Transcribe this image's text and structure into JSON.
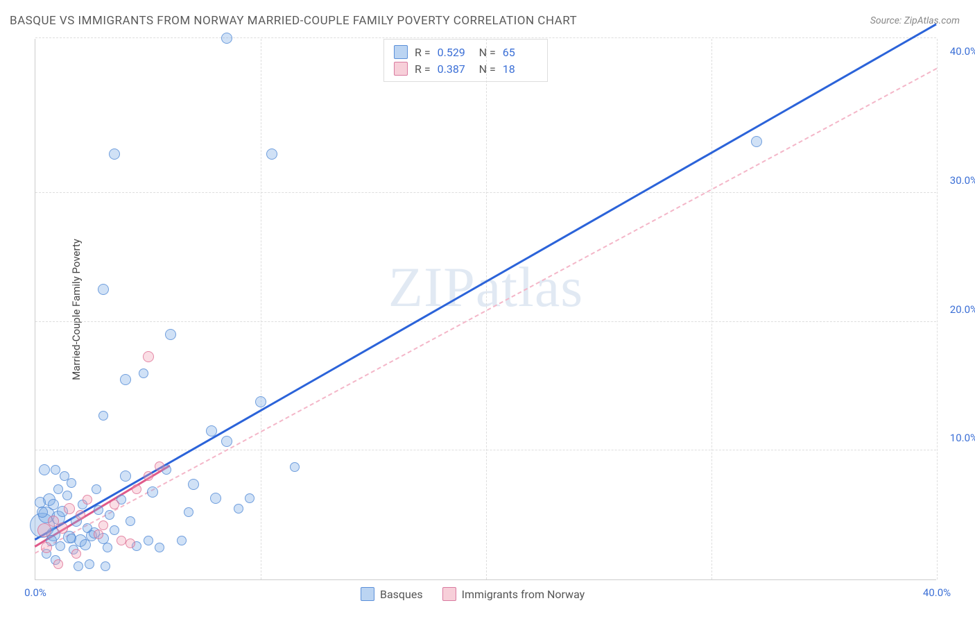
{
  "title": "BASQUE VS IMMIGRANTS FROM NORWAY MARRIED-COUPLE FAMILY POVERTY CORRELATION CHART",
  "source": "Source: ZipAtlas.com",
  "y_axis_label": "Married-Couple Family Poverty",
  "watermark": "ZIPatlas",
  "chart": {
    "type": "scatter",
    "xlim": [
      0,
      40
    ],
    "ylim": [
      0,
      42
    ],
    "x_ticks": [
      0.0,
      40.0
    ],
    "y_ticks": [
      10.0,
      20.0,
      30.0,
      40.0
    ],
    "x_tick_labels": [
      "0.0%",
      "40.0%"
    ],
    "y_tick_labels": [
      "10.0%",
      "20.0%",
      "30.0%",
      "40.0%"
    ],
    "grid_x_positions": [
      10,
      20,
      30,
      40
    ],
    "grid_y_positions": [
      10,
      20,
      30,
      42
    ],
    "grid_color": "#dddddd",
    "background_color": "#ffffff",
    "axis_color": "#cccccc",
    "tick_label_color": "#3b6fd6",
    "point_radius_default": 7,
    "series": [
      {
        "name": "Basques",
        "color_fill": "rgba(120,170,230,0.35)",
        "color_stroke": "rgba(70,130,210,0.7)",
        "css_class": "blue",
        "points": [
          [
            0.3,
            4.2,
            18
          ],
          [
            0.5,
            5.0,
            12
          ],
          [
            0.8,
            3.5,
            10
          ],
          [
            1.0,
            4.8,
            10
          ],
          [
            0.6,
            6.2,
            9
          ],
          [
            1.5,
            3.3,
            9
          ],
          [
            2.0,
            3.0,
            9
          ],
          [
            1.2,
            5.3,
            8
          ],
          [
            1.8,
            4.5,
            8
          ],
          [
            2.5,
            3.4,
            8
          ],
          [
            0.4,
            8.5,
            8
          ],
          [
            0.9,
            8.5,
            7
          ],
          [
            1.3,
            8.0,
            7
          ],
          [
            2.2,
            2.7,
            8
          ],
          [
            3.0,
            3.2,
            8
          ],
          [
            3.5,
            3.8,
            7
          ],
          [
            2.8,
            5.4,
            7
          ],
          [
            3.2,
            2.5,
            7
          ],
          [
            4.0,
            8.0,
            8
          ],
          [
            4.5,
            2.6,
            7
          ],
          [
            5.0,
            3.0,
            7
          ],
          [
            5.2,
            6.8,
            8
          ],
          [
            5.5,
            2.5,
            7
          ],
          [
            6.5,
            3.0,
            7
          ],
          [
            7.0,
            7.4,
            8
          ],
          [
            8.0,
            6.3,
            8
          ],
          [
            8.5,
            10.7,
            8
          ],
          [
            9.5,
            6.3,
            7
          ],
          [
            10.0,
            13.8,
            8
          ],
          [
            11.5,
            8.7,
            7
          ],
          [
            3.0,
            22.5,
            8
          ],
          [
            3.0,
            12.7,
            7
          ],
          [
            4.0,
            15.5,
            8
          ],
          [
            4.8,
            16.0,
            7
          ],
          [
            6.0,
            19.0,
            8
          ],
          [
            8.5,
            42.0,
            8
          ],
          [
            3.5,
            33.0,
            8
          ],
          [
            10.5,
            33.0,
            8
          ],
          [
            32.0,
            34.0,
            8
          ],
          [
            2.6,
            3.6,
            8
          ],
          [
            1.6,
            3.2,
            7
          ],
          [
            0.7,
            3.0,
            8
          ],
          [
            1.1,
            2.6,
            7
          ],
          [
            1.9,
            1.0,
            7
          ],
          [
            2.4,
            1.2,
            7
          ],
          [
            3.1,
            1.0,
            7
          ],
          [
            0.2,
            6.0,
            8
          ],
          [
            1.4,
            6.5,
            7
          ],
          [
            2.1,
            5.8,
            7
          ],
          [
            3.3,
            5.0,
            7
          ],
          [
            4.2,
            4.5,
            7
          ],
          [
            0.5,
            2.0,
            7
          ],
          [
            0.9,
            1.5,
            7
          ],
          [
            1.7,
            2.3,
            7
          ],
          [
            2.3,
            4.0,
            7
          ],
          [
            0.3,
            5.2,
            8
          ],
          [
            0.8,
            5.8,
            8
          ],
          [
            1.0,
            7.0,
            7
          ],
          [
            1.6,
            7.5,
            7
          ],
          [
            2.7,
            7.0,
            7
          ],
          [
            3.8,
            6.2,
            7
          ],
          [
            5.8,
            8.5,
            7
          ],
          [
            6.8,
            5.2,
            7
          ],
          [
            7.8,
            11.5,
            8
          ],
          [
            9.0,
            5.5,
            7
          ]
        ],
        "trend": {
          "slope": 1.0,
          "intercept": 3.0,
          "x_start": 0,
          "x_end": 40,
          "style": "solid",
          "color": "#2b63d9",
          "width": 3
        },
        "trend_dashed": {
          "slope": 0.94,
          "intercept": 2.0,
          "x_start": 0,
          "x_end": 40,
          "color": "#f4b6c8"
        }
      },
      {
        "name": "Immigrants from Norway",
        "color_fill": "rgba(240,160,180,0.35)",
        "color_stroke": "rgba(220,100,140,0.7)",
        "css_class": "pink",
        "points": [
          [
            0.4,
            3.8,
            10
          ],
          [
            0.8,
            4.5,
            8
          ],
          [
            1.2,
            4.0,
            8
          ],
          [
            1.5,
            5.5,
            8
          ],
          [
            2.0,
            5.0,
            7
          ],
          [
            2.3,
            6.2,
            7
          ],
          [
            2.8,
            3.5,
            7
          ],
          [
            3.0,
            4.2,
            7
          ],
          [
            3.5,
            5.8,
            7
          ],
          [
            3.8,
            3.0,
            7
          ],
          [
            4.2,
            2.8,
            7
          ],
          [
            4.5,
            7.0,
            7
          ],
          [
            5.0,
            8.0,
            7
          ],
          [
            5.5,
            8.8,
            7
          ],
          [
            5.0,
            17.3,
            8
          ],
          [
            1.0,
            1.2,
            7
          ],
          [
            1.8,
            2.0,
            7
          ],
          [
            0.5,
            2.5,
            8
          ]
        ],
        "trend": {
          "slope": 1.05,
          "intercept": 2.5,
          "x_start": 0,
          "x_end": 6,
          "style": "solid",
          "color": "#e05a8a",
          "width": 3
        }
      }
    ]
  },
  "legend_top": {
    "rows": [
      {
        "swatch": "blue",
        "r_label": "R =",
        "r_value": "0.529",
        "n_label": "N =",
        "n_value": "65"
      },
      {
        "swatch": "pink",
        "r_label": "R =",
        "r_value": "0.387",
        "n_label": "N =",
        "n_value": "18"
      }
    ]
  },
  "legend_bottom": {
    "items": [
      {
        "swatch": "blue",
        "label": "Basques"
      },
      {
        "swatch": "pink",
        "label": "Immigrants from Norway"
      }
    ]
  }
}
